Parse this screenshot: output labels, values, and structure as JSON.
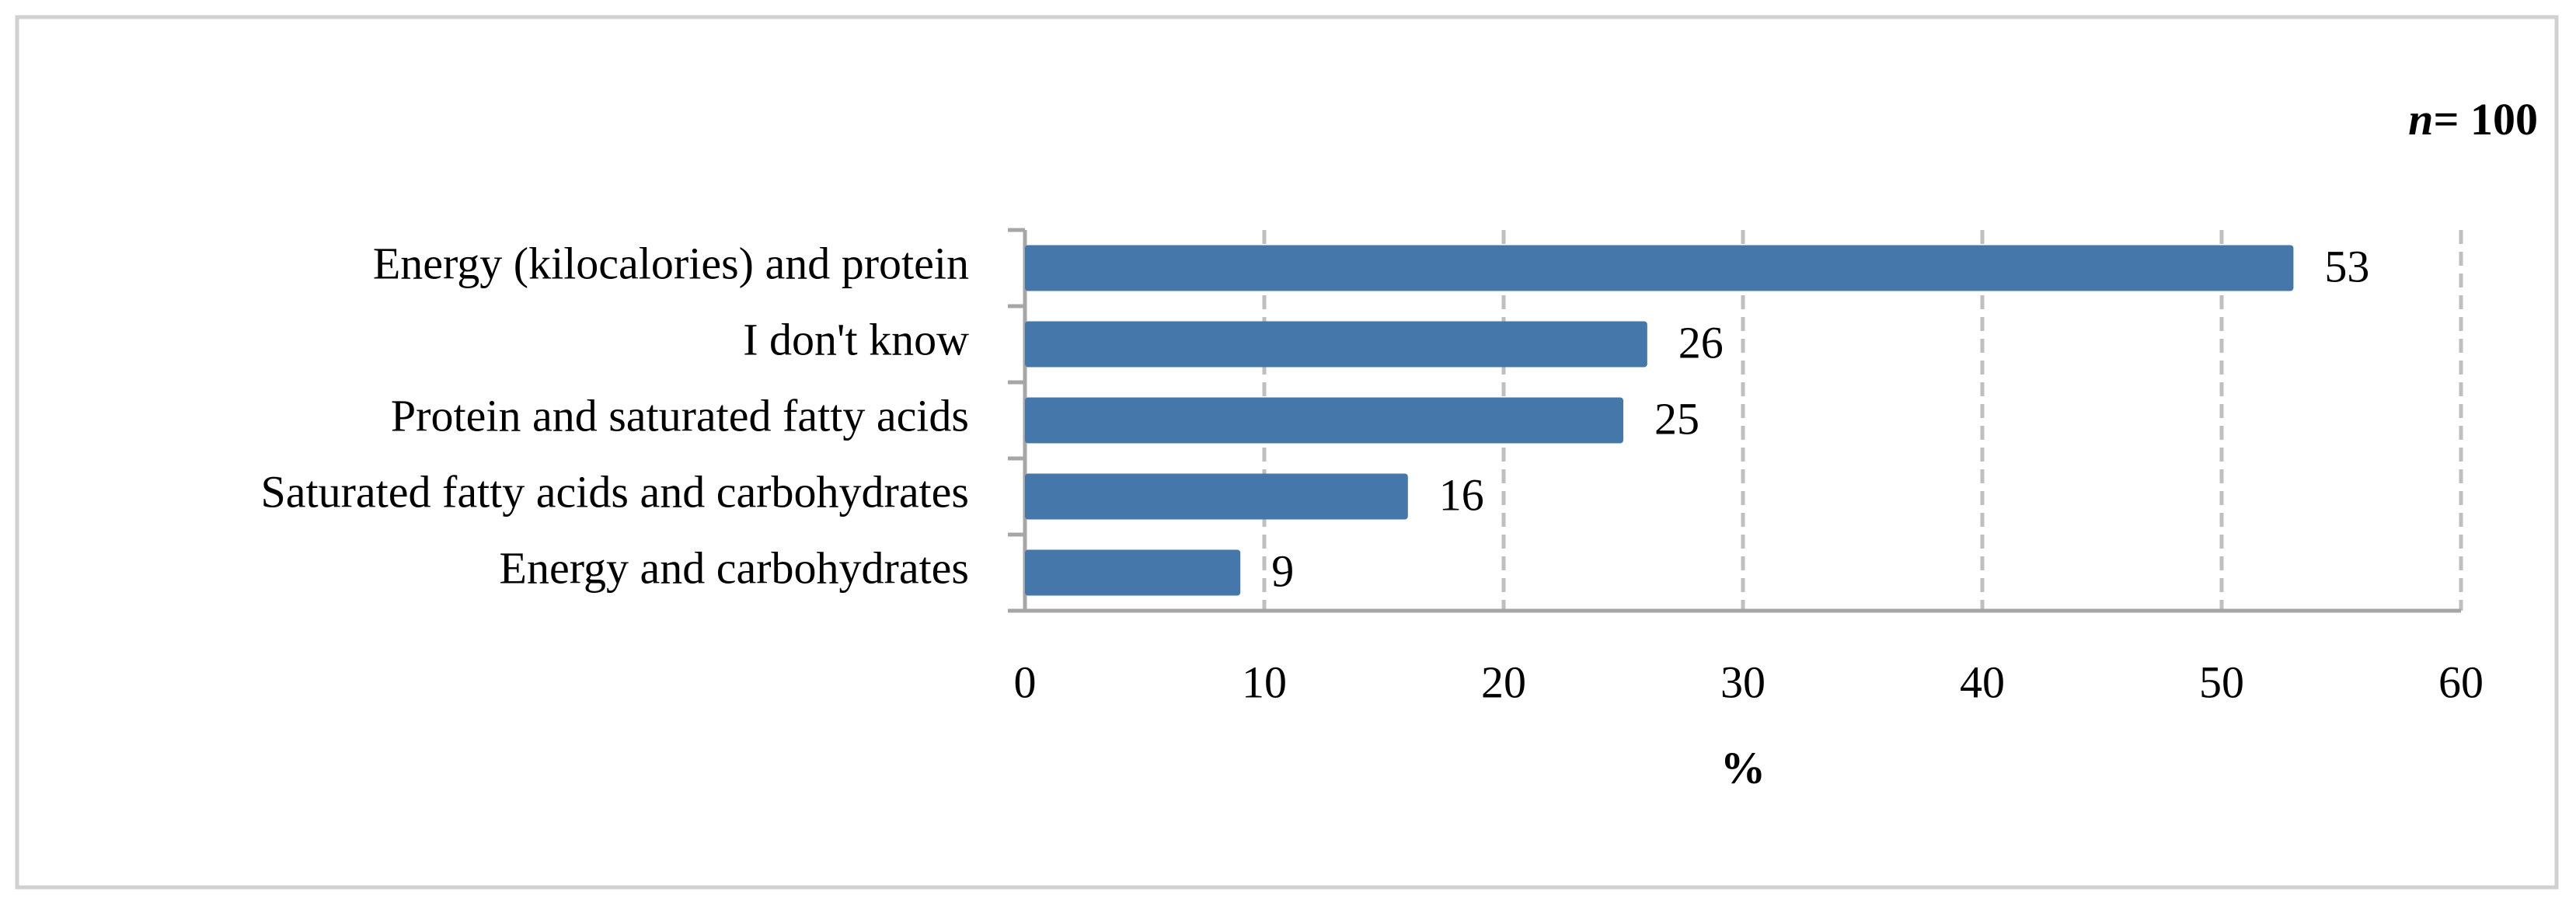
{
  "chart_data": {
    "type": "bar",
    "orientation": "horizontal",
    "annotation_parts": [
      "n",
      "= 100"
    ],
    "categories": [
      "Energy (kilocalories) and protein",
      "I don't know",
      "Protein and saturated fatty acids",
      "Saturated fatty acids and carbohydrates",
      "Energy and carbohydrates"
    ],
    "values": [
      53,
      26,
      25,
      16,
      9
    ],
    "color": "#4677aa",
    "xlabel": "%",
    "xlim": [
      0,
      60
    ],
    "xticks": [
      0,
      10,
      20,
      30,
      40,
      50,
      60
    ],
    "grid": true
  }
}
